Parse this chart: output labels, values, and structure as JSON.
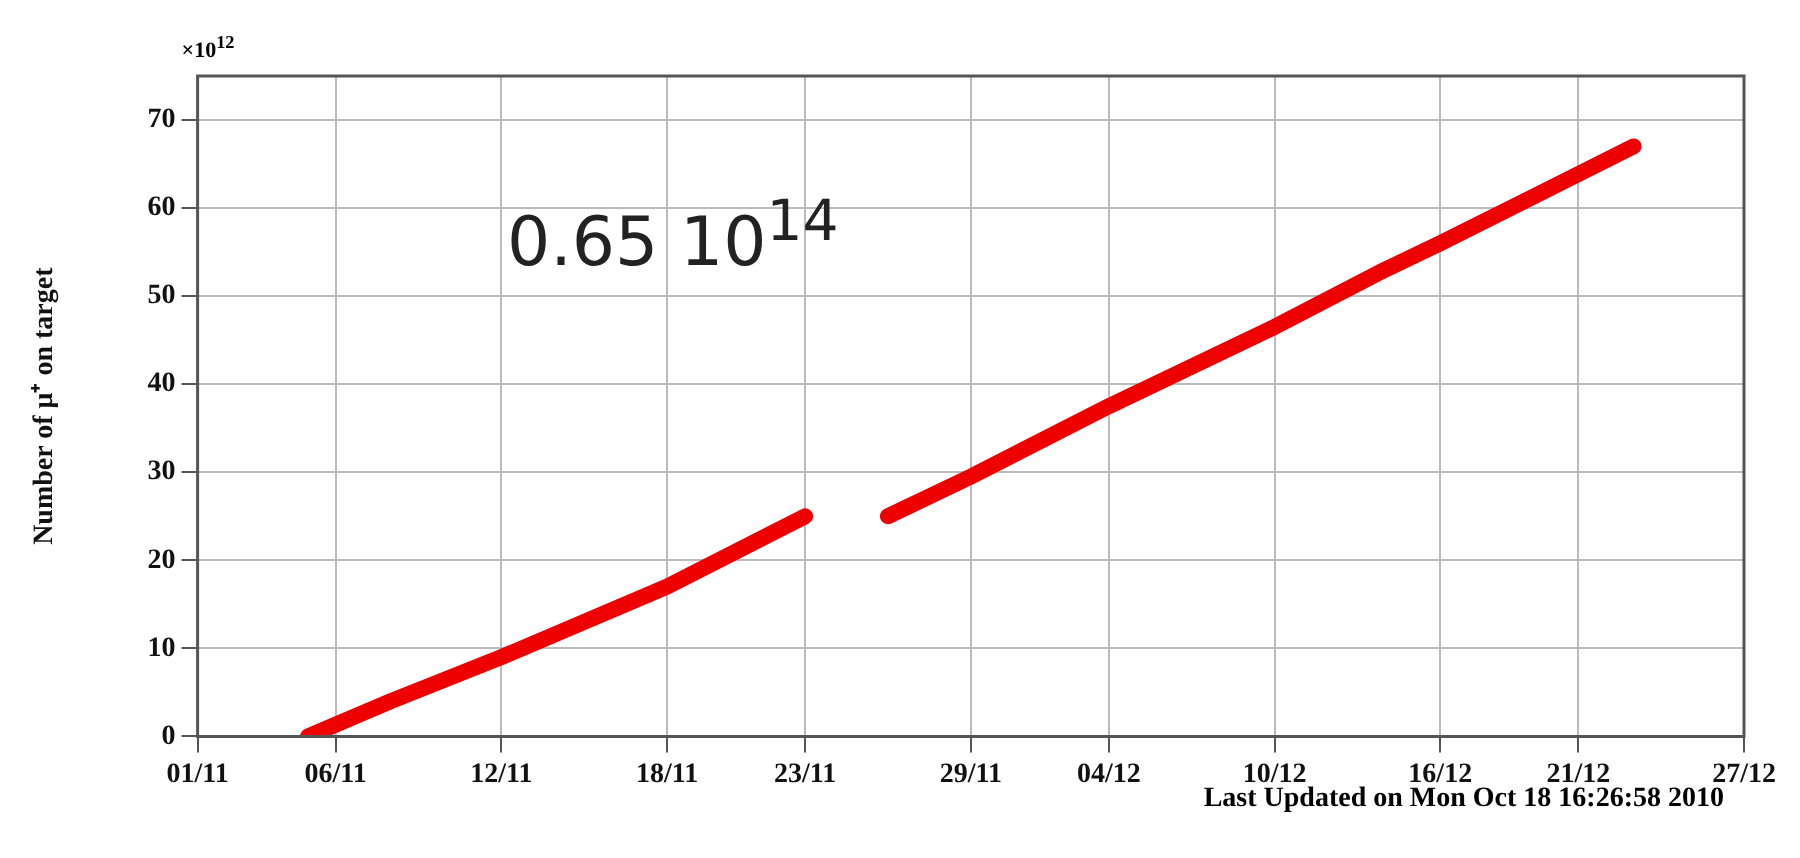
{
  "chart_data": {
    "type": "line",
    "ylabel": "Number of μ⁺ on target",
    "annotations": [
      "×10$^{12}$",
      "0.65  10$^{14}$",
      "Last Updated on Mon Oct 18 16:26:58 2010"
    ],
    "x": [
      "--11-05",
      "--11-08",
      "--11-12",
      "--11-18",
      "--11-23",
      "--11-24",
      "--11-26",
      "--11-29",
      "--12-04",
      "--12-10",
      "--12-14",
      "--12-16",
      "--12-23"
    ],
    "series": [
      {
        "color": "#ee0000",
        "values": [
          0,
          4,
          9,
          17,
          25,
          null,
          25,
          29.5,
          37.5,
          46.5,
          53,
          56,
          67
        ]
      }
    ],
    "xlim": [
      "--11-01",
      "--12-27"
    ],
    "xticks": [
      {
        "value": "--11-01",
        "label": "01/11"
      },
      {
        "value": "--11-06",
        "label": "06/11"
      },
      {
        "value": "--11-12",
        "label": "12/11"
      },
      {
        "value": "--11-18",
        "label": "18/11"
      },
      {
        "value": "--11-23",
        "label": "23/11"
      },
      {
        "value": "--11-29",
        "label": "29/11"
      },
      {
        "value": "--12-04",
        "label": "04/12"
      },
      {
        "value": "--12-10",
        "label": "10/12"
      },
      {
        "value": "--12-16",
        "label": "16/12"
      },
      {
        "value": "--12-21",
        "label": "21/12"
      },
      {
        "value": "--12-27",
        "label": "27/12"
      }
    ],
    "ylim": [
      0,
      75
    ],
    "yticks": [
      0,
      10,
      20,
      30,
      40,
      50,
      60,
      70
    ],
    "grid": true,
    "legend": false,
    "marker": "none",
    "line_style": "solid"
  }
}
